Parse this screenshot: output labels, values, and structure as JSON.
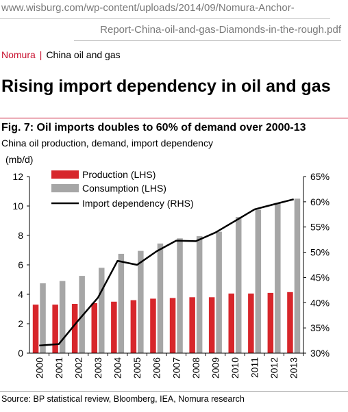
{
  "page": {
    "url_line1": "www.wisburg.com/wp-content/uploads/2014/09/Nomura-Anchor-",
    "url_line2": "Report-China-oil-and-gas-Diamonds-in-the-rough.pdf",
    "brand": "Nomura",
    "separator": "|",
    "section": "China oil and gas",
    "headline": "Rising import dependency in oil and gas",
    "figure_title": "Fig. 7: Oil imports doubles to 60% of demand over 2000-13",
    "figure_subtitle": "China oil production, demand, import dependency",
    "unit_label": "(mb/d)",
    "source": "Source: BP statistical review, Bloomberg, IEA, Nomura research",
    "colors": {
      "brand_red": "#c8102e",
      "production": "#d7262b",
      "consumption": "#a6a6a6",
      "import_line": "#000000"
    }
  },
  "chart_data": {
    "type": "bar",
    "categories": [
      "2000",
      "2001",
      "2002",
      "2003",
      "2004",
      "2005",
      "2006",
      "2007",
      "2008",
      "2009",
      "2010",
      "2011",
      "2012",
      "2013"
    ],
    "series": [
      {
        "name": "Production (LHS)",
        "kind": "bar",
        "axis": "left",
        "values": [
          3.3,
          3.3,
          3.35,
          3.4,
          3.5,
          3.6,
          3.7,
          3.75,
          3.8,
          3.8,
          4.05,
          4.05,
          4.1,
          4.15
        ]
      },
      {
        "name": "Consumption (LHS)",
        "kind": "bar",
        "axis": "left",
        "values": [
          4.75,
          4.9,
          5.25,
          5.8,
          6.75,
          6.95,
          7.45,
          7.8,
          7.95,
          8.25,
          9.25,
          9.75,
          10.2,
          10.5
        ]
      },
      {
        "name": "Import dependency (RHS)",
        "kind": "line",
        "axis": "right",
        "values": [
          31.5,
          31.8,
          36.5,
          41.0,
          48.3,
          47.5,
          50.2,
          52.3,
          52.2,
          53.9,
          56.2,
          58.5,
          59.5,
          60.5
        ]
      }
    ],
    "left_axis": {
      "ylim": [
        0,
        12
      ],
      "ticks": [
        "0",
        "2",
        "4",
        "6",
        "8",
        "10",
        "12"
      ]
    },
    "right_axis": {
      "ylim": [
        30,
        65
      ],
      "ticks": [
        "30%",
        "35%",
        "40%",
        "45%",
        "50%",
        "55%",
        "60%",
        "65%"
      ]
    },
    "legend_placement": "top-left",
    "grid": false
  }
}
